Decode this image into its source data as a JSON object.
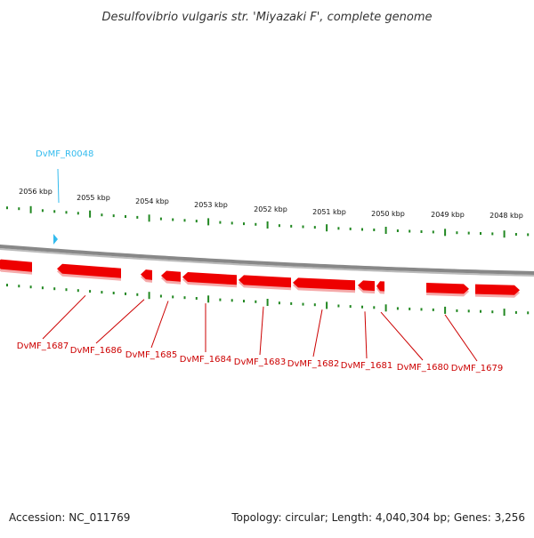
{
  "title": "Desulfovibrio vulgaris str. 'Miyazaki F', complete genome",
  "footer": {
    "accession": "Accession: NC_011769",
    "summary": "Topology: circular; Length: 4,040,304 bp; Genes: 3,256"
  },
  "colors": {
    "gene": "#ee0000",
    "gene_label": "#cc0000",
    "rna": "#33bbee",
    "tick": "#228822",
    "backbone": "#888888"
  },
  "ruler": {
    "kbp_labels": [
      "2056 kbp",
      "2055 kbp",
      "2054 kbp",
      "2053 kbp",
      "2052 kbp",
      "2051 kbp",
      "2050 kbp",
      "2049 kbp",
      "2048 kbp"
    ]
  },
  "rna_features": [
    {
      "label": "DvMF_R0048",
      "strand": "+"
    }
  ],
  "genes": [
    {
      "label": "",
      "strand": "-"
    },
    {
      "label": "DvMF_1687",
      "strand": "-"
    },
    {
      "label": "DvMF_1686",
      "strand": "-"
    },
    {
      "label": "DvMF_1685",
      "strand": "-"
    },
    {
      "label": "DvMF_1684",
      "strand": "-"
    },
    {
      "label": "DvMF_1683",
      "strand": "-"
    },
    {
      "label": "DvMF_1682",
      "strand": "-"
    },
    {
      "label": "DvMF_1681",
      "strand": "-"
    },
    {
      "label": "DvMF_1680",
      "strand": "-"
    },
    {
      "label": "DvMF_1679",
      "strand": "+"
    },
    {
      "label": "",
      "strand": "+"
    }
  ]
}
